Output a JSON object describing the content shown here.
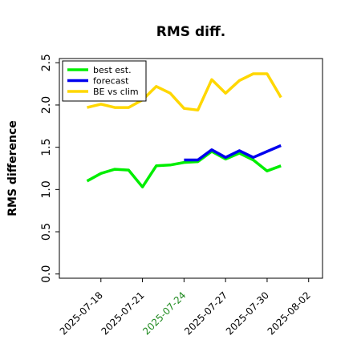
{
  "chart_data": {
    "type": "line",
    "title": "RMS diff.",
    "xlabel": "",
    "ylabel": "RMS difference",
    "ylim": [
      -0.05,
      2.55
    ],
    "xlim": [
      "2025-07-15",
      "2025-08-03"
    ],
    "yticks": [
      0.0,
      0.5,
      1.0,
      1.5,
      2.0,
      2.5
    ],
    "ytick_labels": [
      "0.0",
      "0.5",
      "1.0",
      "1.5",
      "2.0",
      "2.5"
    ],
    "xticks": [
      "2025-07-18",
      "2025-07-21",
      "2025-07-24",
      "2025-07-27",
      "2025-07-30",
      "2025-08-02"
    ],
    "xtick_labels": [
      "2025-07-18",
      "2025-07-21",
      "2025-07-24",
      "2025-07-27",
      "2025-07-30",
      "2025-08-02"
    ],
    "highlight_tick": "2025-07-24",
    "highlight_color": "#228b22",
    "grid": false,
    "legend_position": "top-left",
    "series": [
      {
        "name": "best est.",
        "color": "#00ee00",
        "x": [
          "2025-07-17",
          "2025-07-18",
          "2025-07-19",
          "2025-07-20",
          "2025-07-21",
          "2025-07-22",
          "2025-07-23",
          "2025-07-24",
          "2025-07-25",
          "2025-07-26",
          "2025-07-27",
          "2025-07-28",
          "2025-07-29",
          "2025-07-30",
          "2025-07-31"
        ],
        "values": [
          1.1,
          1.19,
          1.24,
          1.23,
          1.03,
          1.28,
          1.29,
          1.32,
          1.33,
          1.45,
          1.36,
          1.43,
          1.35,
          1.22,
          1.28
        ]
      },
      {
        "name": "forecast",
        "color": "#0000ee",
        "x": [
          "2025-07-24",
          "2025-07-25",
          "2025-07-26",
          "2025-07-27",
          "2025-07-28",
          "2025-07-29",
          "2025-07-30",
          "2025-07-31"
        ],
        "values": [
          1.35,
          1.35,
          1.47,
          1.38,
          1.46,
          1.38,
          1.45,
          1.52
        ]
      },
      {
        "name": "BE vs clim",
        "color": "#ffd700",
        "x": [
          "2025-07-17",
          "2025-07-18",
          "2025-07-19",
          "2025-07-20",
          "2025-07-21",
          "2025-07-22",
          "2025-07-23",
          "2025-07-24",
          "2025-07-25",
          "2025-07-26",
          "2025-07-27",
          "2025-07-28",
          "2025-07-29",
          "2025-07-30",
          "2025-07-31"
        ],
        "values": [
          1.97,
          2.01,
          1.97,
          1.97,
          2.06,
          2.22,
          2.14,
          1.96,
          1.94,
          2.3,
          2.14,
          2.29,
          2.37,
          2.37,
          2.09
        ]
      }
    ]
  }
}
